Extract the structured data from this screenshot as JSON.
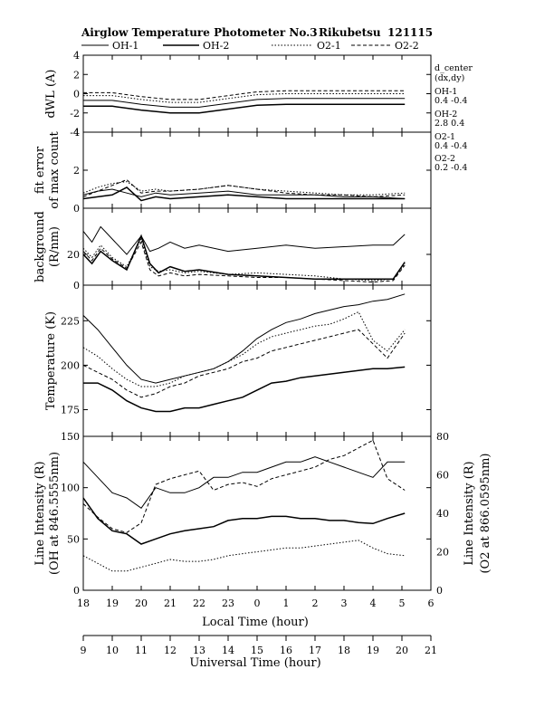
{
  "title": {
    "name": "Airglow Temperature Photometer No.3",
    "station": "Rikubetsu",
    "date": "121115"
  },
  "legend": [
    {
      "label": "OH-1",
      "dash": "solid"
    },
    {
      "label": "OH-2",
      "dash": "solid"
    },
    {
      "label": "O2-1",
      "dash": "dotted"
    },
    {
      "label": "O2-2",
      "dash": "dashed"
    }
  ],
  "side_info": {
    "header": "d_center",
    "header2": "(dx,dy)",
    "items": [
      {
        "name": "OH-1",
        "value": "0.4  -0.4"
      },
      {
        "name": "OH-2",
        "value": "2.8  0.4"
      },
      {
        "name": "O2-1",
        "value": "0.4  -0.4"
      },
      {
        "name": "O2-2",
        "value": "0.2  -0.4"
      }
    ]
  },
  "x_axis_local": {
    "label": "Local Time (hour)",
    "ticks": [
      "18",
      "19",
      "20",
      "21",
      "22",
      "23",
      "0",
      "1",
      "2",
      "3",
      "4",
      "5",
      "6"
    ]
  },
  "x_axis_universal": {
    "label": "Universal Time (hour)",
    "ticks": [
      "9",
      "10",
      "11",
      "12",
      "13",
      "14",
      "15",
      "16",
      "17",
      "18",
      "19",
      "20",
      "21"
    ]
  },
  "chart_data": [
    {
      "type": "line",
      "panel": "dwl",
      "ylabel": "dWL (A)",
      "ylim": [
        -4,
        4
      ],
      "yticks": [
        "-4",
        "-2",
        "0",
        "2",
        "4"
      ],
      "series": [
        {
          "name": "OH-1",
          "dash": "solid",
          "x": [
            18.0,
            19.0,
            20.0,
            21.0,
            22.0,
            23.0,
            24.0,
            25.0,
            26.0,
            27.0,
            28.0,
            29.1
          ],
          "y": [
            -0.7,
            -0.7,
            -1.1,
            -1.4,
            -1.4,
            -1.0,
            -0.6,
            -0.5,
            -0.5,
            -0.5,
            -0.5,
            -0.5
          ]
        },
        {
          "name": "OH-2",
          "dash": "solid",
          "x": [
            18.0,
            19.0,
            20.0,
            21.0,
            22.0,
            23.0,
            24.0,
            25.0,
            26.0,
            27.0,
            28.0,
            29.1
          ],
          "y": [
            -1.3,
            -1.3,
            -1.7,
            -2.0,
            -2.0,
            -1.6,
            -1.2,
            -1.1,
            -1.1,
            -1.1,
            -1.1,
            -1.1
          ]
        },
        {
          "name": "O2-1",
          "dash": "dotted",
          "x": [
            18.0,
            19.0,
            20.0,
            21.0,
            22.0,
            23.0,
            24.0,
            25.0,
            26.0,
            27.0,
            28.0,
            29.1
          ],
          "y": [
            -0.2,
            -0.2,
            -0.6,
            -0.9,
            -0.9,
            -0.5,
            -0.1,
            0.0,
            0.0,
            0.0,
            0.0,
            0.0
          ]
        },
        {
          "name": "O2-2",
          "dash": "dashed",
          "x": [
            18.0,
            19.0,
            20.0,
            21.0,
            22.0,
            23.0,
            24.0,
            25.0,
            26.0,
            27.0,
            28.0,
            29.1
          ],
          "y": [
            0.1,
            0.1,
            -0.3,
            -0.6,
            -0.6,
            -0.2,
            0.2,
            0.3,
            0.3,
            0.3,
            0.3,
            0.3
          ]
        }
      ]
    },
    {
      "type": "line",
      "panel": "fit",
      "ylabel": "fit error",
      "ylabel2": "of max count",
      "ylim": [
        0,
        4
      ],
      "yticks": [
        "0",
        "2",
        "4"
      ],
      "series": [
        {
          "name": "OH-1",
          "dash": "solid",
          "x": [
            18.0,
            18.5,
            19.0,
            19.5,
            20.0,
            20.5,
            21.0,
            22.0,
            23.0,
            24.0,
            25.0,
            26.0,
            27.0,
            28.0,
            29.1
          ],
          "y": [
            0.7,
            0.9,
            1.0,
            0.8,
            0.6,
            0.8,
            0.7,
            0.8,
            0.9,
            0.7,
            0.7,
            0.7,
            0.6,
            0.6,
            0.5
          ]
        },
        {
          "name": "OH-2",
          "dash": "solid",
          "x": [
            18.0,
            18.5,
            19.0,
            19.5,
            20.0,
            20.5,
            21.0,
            22.0,
            23.0,
            24.0,
            25.0,
            26.0,
            27.0,
            28.0,
            29.1
          ],
          "y": [
            0.5,
            0.6,
            0.7,
            1.1,
            0.4,
            0.6,
            0.5,
            0.6,
            0.7,
            0.6,
            0.5,
            0.5,
            0.5,
            0.5,
            0.5
          ]
        },
        {
          "name": "O2-1",
          "dash": "dotted",
          "x": [
            18.0,
            18.5,
            19.0,
            19.5,
            20.0,
            20.5,
            21.0,
            22.0,
            23.0,
            24.0,
            25.0,
            26.0,
            27.0,
            28.0,
            29.1
          ],
          "y": [
            0.8,
            1.1,
            1.3,
            1.4,
            0.9,
            1.0,
            0.9,
            1.0,
            1.2,
            1.0,
            0.9,
            0.8,
            0.7,
            0.7,
            0.8
          ]
        },
        {
          "name": "O2-2",
          "dash": "dashed",
          "x": [
            18.0,
            18.5,
            19.0,
            19.5,
            20.0,
            20.5,
            21.0,
            22.0,
            23.0,
            24.0,
            25.0,
            26.0,
            27.0,
            28.0,
            29.1
          ],
          "y": [
            0.6,
            0.9,
            1.2,
            1.5,
            0.8,
            0.9,
            0.9,
            1.0,
            1.2,
            1.0,
            0.8,
            0.7,
            0.7,
            0.6,
            0.7
          ]
        }
      ]
    },
    {
      "type": "line",
      "panel": "background",
      "ylabel": "background",
      "ylabel2": "(R/nm)",
      "ylim": [
        0,
        50
      ],
      "yticks": [
        "0",
        "20"
      ],
      "series": [
        {
          "name": "OH-1",
          "dash": "solid",
          "x": [
            18.0,
            18.3,
            18.6,
            19.0,
            19.5,
            20.0,
            20.3,
            20.6,
            21.0,
            21.5,
            22.0,
            23.0,
            24.0,
            25.0,
            26.0,
            27.0,
            28.0,
            28.7,
            29.1
          ],
          "y": [
            35,
            28,
            38,
            30,
            20,
            32,
            22,
            24,
            28,
            24,
            26,
            22,
            24,
            26,
            24,
            25,
            26,
            26,
            33
          ]
        },
        {
          "name": "OH-2",
          "dash": "solid",
          "x": [
            18.0,
            18.3,
            18.6,
            19.0,
            19.5,
            20.0,
            20.3,
            20.6,
            21.0,
            21.5,
            22.0,
            23.0,
            24.0,
            25.0,
            26.0,
            27.0,
            28.0,
            28.7,
            29.1
          ],
          "y": [
            20,
            14,
            22,
            16,
            10,
            32,
            14,
            8,
            12,
            9,
            10,
            7,
            6,
            5,
            4,
            4,
            4,
            4,
            15
          ]
        },
        {
          "name": "O2-1",
          "dash": "dotted",
          "x": [
            18.0,
            18.3,
            18.6,
            19.0,
            19.5,
            20.0,
            20.3,
            20.6,
            21.0,
            21.5,
            22.0,
            23.0,
            24.0,
            25.0,
            26.0,
            27.0,
            28.0,
            28.7,
            29.1
          ],
          "y": [
            24,
            18,
            26,
            18,
            12,
            30,
            12,
            9,
            10,
            8,
            9,
            7,
            8,
            7,
            6,
            4,
            3,
            4,
            14
          ]
        },
        {
          "name": "O2-2",
          "dash": "dashed",
          "x": [
            18.0,
            18.3,
            18.6,
            19.0,
            19.5,
            20.0,
            20.3,
            20.6,
            21.0,
            21.5,
            22.0,
            23.0,
            24.0,
            25.0,
            26.0,
            27.0,
            28.0,
            28.7,
            29.1
          ],
          "y": [
            22,
            16,
            24,
            17,
            11,
            28,
            10,
            6,
            8,
            6,
            7,
            6,
            5,
            5,
            4,
            3,
            2,
            3,
            13
          ]
        }
      ]
    },
    {
      "type": "line",
      "panel": "temperature",
      "ylabel": "Temperature (K)",
      "ylim": [
        160,
        245
      ],
      "yticks": [
        "175",
        "200",
        "225"
      ],
      "series": [
        {
          "name": "OH-1",
          "dash": "solid",
          "x": [
            18.0,
            18.5,
            19.0,
            19.5,
            20.0,
            20.5,
            21.0,
            21.5,
            22.0,
            22.5,
            23.0,
            23.5,
            24.0,
            24.5,
            25.0,
            25.5,
            26.0,
            26.5,
            27.0,
            27.5,
            28.0,
            28.5,
            29.1
          ],
          "y": [
            228,
            220,
            210,
            200,
            192,
            190,
            192,
            194,
            196,
            198,
            202,
            208,
            215,
            220,
            224,
            226,
            229,
            231,
            233,
            234,
            236,
            237,
            240
          ]
        },
        {
          "name": "OH-2",
          "dash": "solid",
          "x": [
            18.0,
            18.5,
            19.0,
            19.5,
            20.0,
            20.5,
            21.0,
            21.5,
            22.0,
            22.5,
            23.0,
            23.5,
            24.0,
            24.5,
            25.0,
            25.5,
            26.0,
            26.5,
            27.0,
            27.5,
            28.0,
            28.5,
            29.1
          ],
          "y": [
            190,
            190,
            186,
            180,
            176,
            174,
            174,
            176,
            176,
            178,
            180,
            182,
            186,
            190,
            191,
            193,
            194,
            195,
            196,
            197,
            198,
            198,
            199
          ]
        },
        {
          "name": "O2-1",
          "dash": "dotted",
          "x": [
            18.0,
            18.5,
            19.0,
            19.5,
            20.0,
            20.5,
            21.0,
            21.5,
            22.0,
            22.5,
            23.0,
            23.5,
            24.0,
            24.5,
            25.0,
            25.5,
            26.0,
            26.5,
            27.0,
            27.5,
            28.0,
            28.5,
            29.1
          ],
          "y": [
            210,
            205,
            198,
            192,
            188,
            188,
            190,
            194,
            196,
            198,
            202,
            206,
            212,
            216,
            218,
            220,
            222,
            223,
            226,
            230,
            214,
            208,
            220
          ]
        },
        {
          "name": "O2-2",
          "dash": "dashed",
          "x": [
            18.0,
            18.5,
            19.0,
            19.5,
            20.0,
            20.5,
            21.0,
            21.5,
            22.0,
            22.5,
            23.0,
            23.5,
            24.0,
            24.5,
            25.0,
            25.5,
            26.0,
            26.5,
            27.0,
            27.5,
            28.0,
            28.5,
            29.1
          ],
          "y": [
            200,
            196,
            192,
            186,
            182,
            184,
            188,
            190,
            194,
            196,
            198,
            202,
            204,
            208,
            210,
            212,
            214,
            216,
            218,
            220,
            212,
            204,
            218
          ]
        }
      ]
    },
    {
      "type": "line",
      "panel": "intensity",
      "ylabel": "Line Intensity (R)",
      "ylabel2": "(OH at 846.5555nm)",
      "ylim": [
        0,
        150
      ],
      "yticks": [
        "0",
        "50",
        "100",
        "150"
      ],
      "y2label": "Line Intensity (R)",
      "y2label2": "(O2 at 866.0595nm)",
      "y2lim": [
        0,
        80
      ],
      "y2ticks": [
        "0",
        "20",
        "40",
        "60",
        "80"
      ],
      "series": [
        {
          "name": "OH-1",
          "dash": "solid",
          "axis": "left",
          "x": [
            18.0,
            18.5,
            19.0,
            19.5,
            20.0,
            20.5,
            21.0,
            21.5,
            22.0,
            22.5,
            23.0,
            23.5,
            24.0,
            24.5,
            25.0,
            25.5,
            26.0,
            26.5,
            27.0,
            27.5,
            28.0,
            28.5,
            29.1
          ],
          "y": [
            125,
            110,
            95,
            90,
            80,
            100,
            95,
            95,
            100,
            110,
            110,
            115,
            115,
            120,
            125,
            125,
            130,
            125,
            120,
            115,
            110,
            125,
            125
          ]
        },
        {
          "name": "OH-2",
          "dash": "solid",
          "axis": "left",
          "x": [
            18.0,
            18.5,
            19.0,
            19.5,
            20.0,
            20.5,
            21.0,
            21.5,
            22.0,
            22.5,
            23.0,
            23.5,
            24.0,
            24.5,
            25.0,
            25.5,
            26.0,
            26.5,
            27.0,
            27.5,
            28.0,
            28.5,
            29.1
          ],
          "y": [
            90,
            70,
            58,
            55,
            45,
            50,
            55,
            58,
            60,
            62,
            68,
            70,
            70,
            72,
            72,
            70,
            70,
            68,
            68,
            66,
            65,
            70,
            75
          ]
        },
        {
          "name": "O2-1",
          "dash": "dotted",
          "axis": "right",
          "x": [
            18.0,
            18.5,
            19.0,
            19.5,
            20.0,
            20.5,
            21.0,
            21.5,
            22.0,
            22.5,
            23.0,
            23.5,
            24.0,
            24.5,
            25.0,
            25.5,
            26.0,
            26.5,
            27.0,
            27.5,
            28.0,
            28.5,
            29.1
          ],
          "y": [
            18,
            14,
            10,
            10,
            12,
            14,
            16,
            15,
            15,
            16,
            18,
            19,
            20,
            21,
            22,
            22,
            23,
            24,
            25,
            26,
            22,
            19,
            18
          ]
        },
        {
          "name": "O2-2",
          "dash": "dashed",
          "axis": "right",
          "x": [
            18.0,
            18.5,
            19.0,
            19.5,
            20.0,
            20.5,
            21.0,
            21.5,
            22.0,
            22.5,
            23.0,
            23.5,
            24.0,
            24.5,
            25.0,
            25.5,
            26.0,
            26.5,
            27.0,
            27.5,
            28.0,
            28.5,
            29.1
          ],
          "y": [
            45,
            38,
            32,
            30,
            35,
            55,
            58,
            60,
            62,
            52,
            55,
            56,
            54,
            58,
            60,
            62,
            64,
            68,
            70,
            74,
            78,
            58,
            52
          ]
        }
      ]
    }
  ]
}
